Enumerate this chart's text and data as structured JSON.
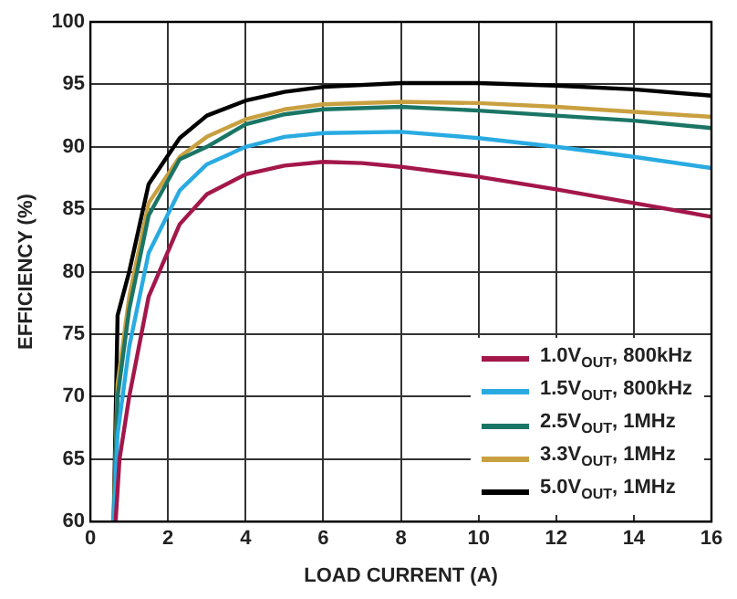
{
  "chart_data": {
    "type": "line",
    "xlabel": "LOAD CURRENT (A)",
    "ylabel": "EFFICIENCY (%)",
    "xlim": [
      0,
      16
    ],
    "xticks": [
      0,
      2,
      4,
      6,
      8,
      10,
      12,
      14,
      16
    ],
    "ylim": [
      60,
      100
    ],
    "yticks": [
      60,
      65,
      70,
      75,
      80,
      85,
      90,
      95,
      100
    ],
    "grid": true,
    "legend": "bottom right",
    "marker": "none",
    "line_style": "solid",
    "series": [
      {
        "name": "1.0V$_{OUT}$, 800kHz",
        "color": "#a3174a",
        "x": [
          0.65,
          0.75,
          1,
          1.5,
          2.3,
          3,
          4,
          5,
          6,
          7,
          8,
          10,
          12,
          14,
          16
        ],
        "values": [
          60,
          65,
          70,
          78,
          83.8,
          86.2,
          87.8,
          88.5,
          88.8,
          88.7,
          88.4,
          87.6,
          86.6,
          85.5,
          84.4
        ]
      },
      {
        "name": "1.5V$_{OUT}$, 800kHz",
        "color": "#29abe2",
        "x": [
          0.6,
          0.7,
          1,
          1.5,
          2.3,
          3,
          4,
          5,
          6,
          8,
          10,
          12,
          14,
          16
        ],
        "values": [
          60,
          67,
          74,
          81.5,
          86.5,
          88.6,
          90,
          90.8,
          91.1,
          91.2,
          90.7,
          90,
          89.2,
          88.3
        ]
      },
      {
        "name": "2.5V$_{OUT}$, 1MHz",
        "color": "#1a7565",
        "x": [
          0.6,
          0.7,
          1,
          1.5,
          2.3,
          3,
          4,
          5,
          6,
          8,
          10,
          12,
          14,
          16
        ],
        "values": [
          60,
          70,
          77,
          84.5,
          89,
          90,
          91.8,
          92.6,
          93,
          93.2,
          92.9,
          92.5,
          92.1,
          91.5
        ]
      },
      {
        "name": "3.3V$_{OUT}$, 1MHz",
        "color": "#c9a040",
        "x": [
          0.6,
          0.7,
          1,
          1.5,
          2.3,
          3,
          4,
          5,
          6,
          8,
          10,
          12,
          14,
          16
        ],
        "values": [
          60,
          71,
          78,
          85.5,
          89.2,
          90.8,
          92.2,
          93,
          93.4,
          93.6,
          93.5,
          93.2,
          92.8,
          92.4
        ]
      },
      {
        "name": "5.0V$_{OUT}$, 1MHz",
        "color": "#000000",
        "x": [
          0.6,
          0.7,
          1,
          1.5,
          2.3,
          3,
          4,
          5,
          6,
          8,
          10,
          12,
          14,
          16
        ],
        "values": [
          60,
          76.5,
          80,
          87,
          90.7,
          92.5,
          93.7,
          94.4,
          94.8,
          95.1,
          95.1,
          94.9,
          94.6,
          94.1
        ]
      }
    ]
  }
}
